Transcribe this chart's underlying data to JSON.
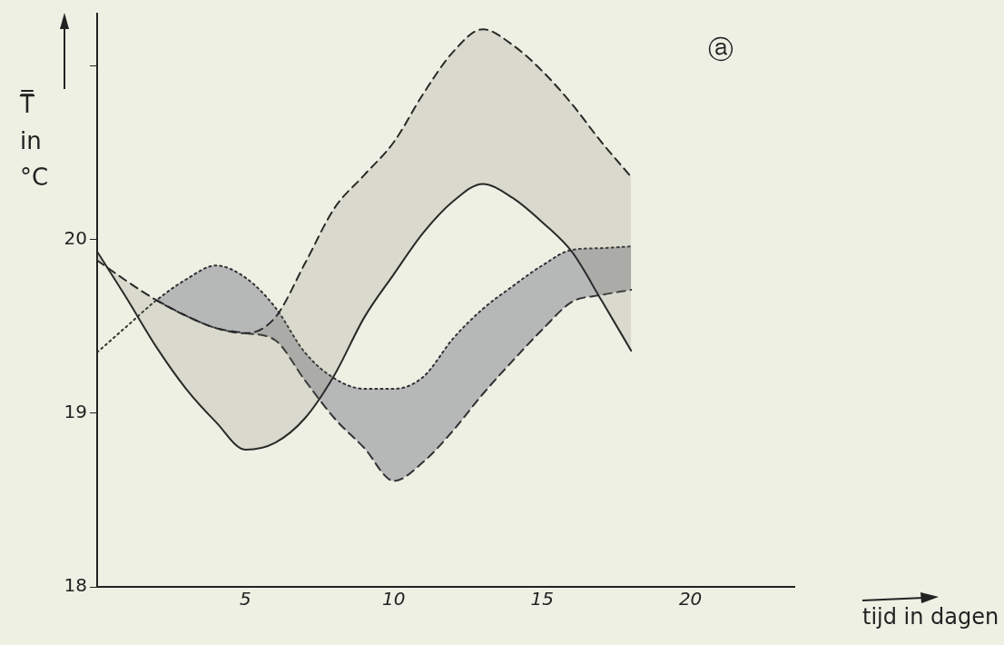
{
  "chart_data": {
    "type": "line",
    "xlabel": "tijd in dagen",
    "ylabel": "T̿ in °C",
    "annotations": [
      "ⓐ"
    ],
    "x": [
      0,
      1,
      2,
      3,
      4,
      5,
      6,
      7,
      8,
      9,
      10,
      11,
      12,
      13,
      14,
      15,
      16,
      17,
      18
    ],
    "xlim": [
      0,
      23.5
    ],
    "xticks": [
      5,
      10,
      15,
      20
    ],
    "ylim": [
      18,
      21.3
    ],
    "yticks": [
      18,
      19,
      20,
      {
        "value": 21,
        "label": null
      }
    ],
    "grid": false,
    "legend": false,
    "marker": "none",
    "series": [
      {
        "color": "#222222",
        "line_style": "solid",
        "values": [
          19.93,
          19.66,
          19.38,
          19.14,
          18.95,
          18.79,
          18.83,
          18.97,
          19.22,
          19.55,
          19.8,
          20.04,
          20.22,
          20.32,
          20.24,
          20.1,
          19.93,
          19.65,
          19.36
        ]
      },
      {
        "color": "#222222",
        "line_style": "dashed",
        "values": [
          19.88,
          19.76,
          19.65,
          19.56,
          19.49,
          19.46,
          19.55,
          19.86,
          20.18,
          20.37,
          20.56,
          20.84,
          21.08,
          21.21,
          21.12,
          20.97,
          20.78,
          20.56,
          20.36
        ],
        "lower": [
          19.93,
          19.66,
          19.38,
          19.14,
          18.95,
          18.79,
          18.83,
          18.97,
          19.22,
          19.55,
          19.8,
          20.04,
          20.22,
          20.32,
          20.24,
          20.1,
          19.93,
          19.65,
          19.36
        ],
        "upper": [
          19.88,
          19.76,
          19.65,
          19.56,
          19.49,
          19.46,
          19.55,
          19.86,
          20.18,
          20.37,
          20.56,
          20.84,
          21.08,
          21.21,
          21.12,
          20.97,
          20.78,
          20.56,
          20.36
        ]
      },
      {
        "color": "#333333",
        "line_style": "dotted",
        "values": [
          19.35,
          19.5,
          19.65,
          19.77,
          19.85,
          19.78,
          19.61,
          19.35,
          19.2,
          19.14,
          19.14,
          19.21,
          19.43,
          19.6,
          19.73,
          19.85,
          19.94,
          19.95,
          19.96
        ],
        "lower": [
          null,
          null,
          19.65,
          19.56,
          19.49,
          19.46,
          19.42,
          19.19,
          18.97,
          18.8,
          18.61,
          18.72,
          18.9,
          19.11,
          19.3,
          19.48,
          19.64,
          19.68,
          19.71
        ],
        "upper": [
          null,
          null,
          19.65,
          19.77,
          19.85,
          19.78,
          19.61,
          19.35,
          19.2,
          19.14,
          19.14,
          19.21,
          19.43,
          19.6,
          19.73,
          19.85,
          19.94,
          19.95,
          19.96
        ]
      },
      {
        "color": "#333333",
        "line_style": "dashed",
        "values": [
          null,
          null,
          19.65,
          19.56,
          19.49,
          19.46,
          19.42,
          19.19,
          18.97,
          18.8,
          18.61,
          18.72,
          18.9,
          19.11,
          19.3,
          19.48,
          19.64,
          19.68,
          19.71
        ]
      }
    ]
  }
}
